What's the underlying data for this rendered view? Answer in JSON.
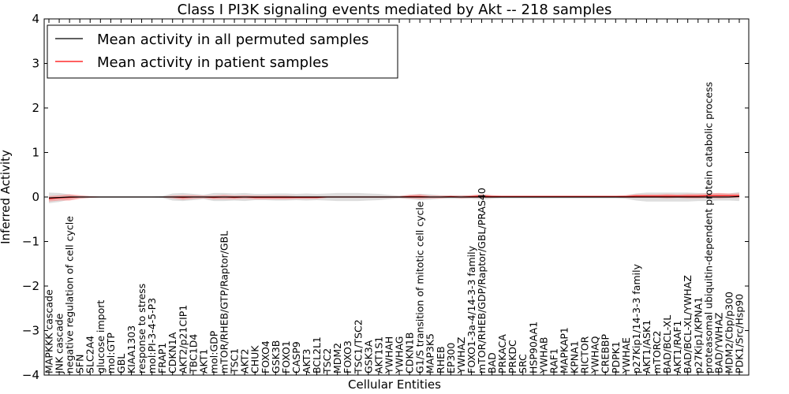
{
  "chart_data": {
    "type": "line",
    "title": "Class I PI3K signaling events mediated by Akt -- 218 samples",
    "xlabel": "Cellular Entities",
    "ylabel": "Inferred Activity",
    "ylim": [
      -4,
      4
    ],
    "yticks": [
      "−4",
      "−3",
      "−2",
      "−1",
      "0",
      "1",
      "2",
      "3",
      "4"
    ],
    "legend_position": "top-left",
    "colors": {
      "permuted": "#000000",
      "patient": "#ff0000",
      "permuted_band": "#c8c8c8",
      "patient_band": "#ff8080"
    },
    "categories": [
      "MAPKKK cascade",
      "JNK cascade",
      "negative regulation of cell cycle",
      "SFN",
      "SLC2A4",
      "glucose import",
      "mol:GTP",
      "GBL",
      "KIAA1303",
      "response to stress",
      "mol:PI-3-4-5-P3",
      "FRAP1",
      "CDKN1A",
      "AKT2/p21CIP1",
      "TBC1D4",
      "AKT1",
      "mol:GDP",
      "mTOR/RHEB/GTP/Raptor/GBL",
      "TSC1",
      "AKT2",
      "CHUK",
      "FOXO4",
      "GSK3B",
      "FOXO1",
      "CASP9",
      "AKT3",
      "BCL2L1",
      "TSC2",
      "MDM2",
      "FOXO3",
      "TSC1/TSC2",
      "GSK3A",
      "AKT1S1",
      "YWHAH",
      "YWHAG",
      "CDKN1B",
      "G1/S transition of mitotic cell cycle",
      "MAP3K5",
      "RHEB",
      "EP300",
      "YWHAZ",
      "FOXO1-3a-4/14-3-3 family",
      "mTOR/RHEB/GDP/Raptor/GBL/PRAS40",
      "BAD",
      "PRKACA",
      "PRKDC",
      "SRC",
      "HSP90AA1",
      "YWHAB",
      "RAF1",
      "MAPKAP1",
      "KPNA1",
      "RICTOR",
      "YWHAQ",
      "CREBBP",
      "PDPK1",
      "YWHAE",
      "p27Kip1/14-3-3 family",
      "AKT1/ASK1",
      "mTORC2",
      "BAD/BCL-XL",
      "AKT1/RAF1",
      "BAD/BCL-XL/YWHAZ",
      "p27Kip1/KPNA1",
      "proteasomal ubiquitin-dependent protein catabolic process",
      "BAD/YWHAZ",
      "MDM2/Cbp/p300",
      "PDK1/Src/Hsp90"
    ],
    "series": [
      {
        "name": "Mean activity in all permuted samples",
        "color": "#000000",
        "values": [
          -0.02,
          -0.01,
          0,
          0,
          0,
          0,
          0,
          0,
          0,
          0,
          0,
          0,
          0,
          0,
          0,
          0,
          0,
          0,
          0,
          0,
          0,
          0,
          0,
          0,
          0,
          0,
          0,
          0,
          0,
          0,
          0,
          0,
          0,
          0,
          0,
          0,
          0,
          0,
          0,
          0,
          0,
          0,
          0,
          0,
          0,
          0,
          0,
          0,
          0,
          0,
          0,
          0,
          0,
          0,
          0,
          0,
          0,
          0,
          0,
          0,
          0,
          0,
          0,
          0,
          0,
          0,
          0,
          0.01
        ],
        "band": [
          0.12,
          0.1,
          0.06,
          0.02,
          0.01,
          0.01,
          0.01,
          0.01,
          0.01,
          0.01,
          0.01,
          0.02,
          0.08,
          0.09,
          0.07,
          0.05,
          0.09,
          0.09,
          0.08,
          0.09,
          0.07,
          0.07,
          0.08,
          0.08,
          0.07,
          0.08,
          0.07,
          0.08,
          0.09,
          0.09,
          0.09,
          0.08,
          0.07,
          0.05,
          0.03,
          0.05,
          0.07,
          0.06,
          0.04,
          0.04,
          0.04,
          0.04,
          0.06,
          0.04,
          0.03,
          0.03,
          0.03,
          0.03,
          0.03,
          0.03,
          0.03,
          0.03,
          0.03,
          0.03,
          0.03,
          0.03,
          0.04,
          0.08,
          0.1,
          0.1,
          0.1,
          0.1,
          0.1,
          0.09,
          0.09,
          0.08,
          0.08,
          0.1
        ]
      },
      {
        "name": "Mean activity in patient samples",
        "color": "#ff0000",
        "values": [
          -0.04,
          -0.02,
          -0.01,
          0,
          0,
          0,
          0,
          0,
          0,
          0,
          0,
          0,
          0,
          -0.01,
          0,
          0,
          -0.01,
          0,
          -0.01,
          0,
          -0.01,
          -0.01,
          -0.01,
          -0.01,
          -0.01,
          -0.01,
          -0.01,
          0,
          0,
          0,
          0,
          0,
          0,
          0,
          0,
          0.01,
          0.01,
          0,
          0,
          0.01,
          0,
          0.01,
          0.02,
          0.01,
          0.01,
          0.01,
          0.01,
          0.01,
          0.01,
          0.01,
          0.01,
          0.01,
          0.01,
          0.01,
          0.01,
          0.01,
          0.01,
          0.02,
          0.02,
          0.02,
          0.02,
          0.02,
          0.02,
          0.02,
          0.03,
          0.03,
          0.03,
          0.03
        ],
        "band": [
          0.06,
          0.06,
          0.07,
          0.04,
          0.02,
          0.01,
          0.01,
          0.01,
          0.01,
          0.01,
          0.01,
          0.01,
          0.03,
          0.05,
          0.04,
          0.03,
          0.04,
          0.05,
          0.04,
          0.04,
          0.04,
          0.04,
          0.04,
          0.04,
          0.03,
          0.03,
          0.03,
          0.02,
          0.02,
          0.02,
          0.02,
          0.02,
          0.02,
          0.02,
          0.02,
          0.04,
          0.05,
          0.03,
          0.03,
          0.02,
          0.03,
          0.03,
          0.04,
          0.03,
          0.02,
          0.02,
          0.02,
          0.02,
          0.02,
          0.02,
          0.02,
          0.02,
          0.02,
          0.02,
          0.02,
          0.02,
          0.03,
          0.04,
          0.04,
          0.04,
          0.05,
          0.04,
          0.05,
          0.05,
          0.05,
          0.06,
          0.05,
          0.05
        ]
      }
    ]
  }
}
